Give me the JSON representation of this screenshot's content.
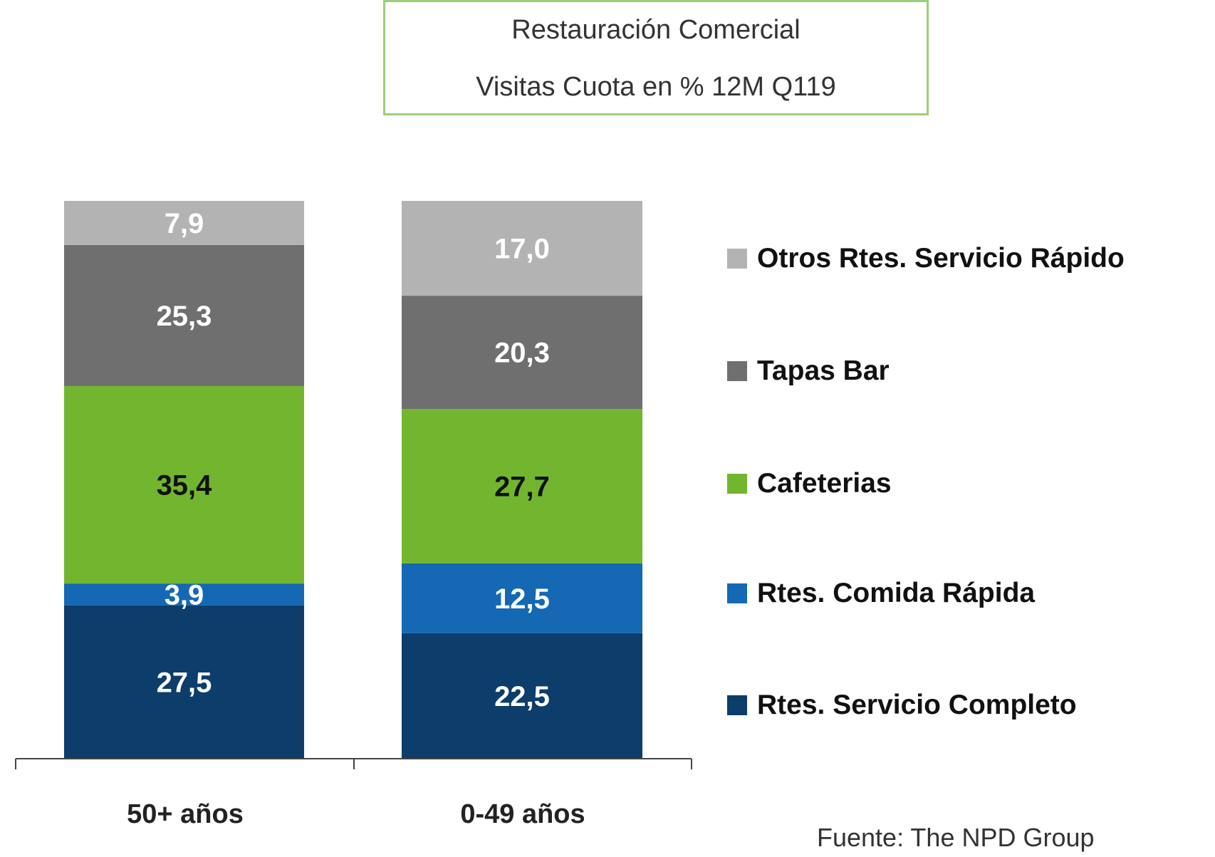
{
  "chart_data": {
    "type": "bar",
    "stacked": true,
    "title": "Restauración  Comercial",
    "subtitle": "Visitas Cuota en % 12M Q119",
    "categories": [
      "50+ años",
      "0-49 años"
    ],
    "series": [
      {
        "name": "Rtes. Servicio Completo",
        "values": [
          27.5,
          22.5
        ],
        "color": "#0c3d6b",
        "label_color": "#ffffff"
      },
      {
        "name": "Rtes. Comida Rápida",
        "values": [
          3.9,
          12.5
        ],
        "color": "#1468b4",
        "label_color": "#ffffff"
      },
      {
        "name": "Cafeterias",
        "values": [
          35.4,
          27.7
        ],
        "color": "#72b62f",
        "label_color": "#111111"
      },
      {
        "name": "Tapas Bar",
        "values": [
          25.3,
          20.3
        ],
        "color": "#6f6f6f",
        "label_color": "#ffffff"
      },
      {
        "name": "Otros Rtes. Servicio Rápido",
        "values": [
          7.9,
          17.0
        ],
        "color": "#b3b3b3",
        "label_color": "#ffffff"
      }
    ],
    "data_labels": [
      [
        "27,5",
        "22,5"
      ],
      [
        "3,9",
        "12,5"
      ],
      [
        "35,4",
        "27,7"
      ],
      [
        "25,3",
        "20,3"
      ],
      [
        "7,9",
        "17,0"
      ]
    ],
    "ylim": [
      0,
      100
    ],
    "grid": false,
    "legend_placement": "right",
    "source": "Fuente: The NPD Group"
  }
}
